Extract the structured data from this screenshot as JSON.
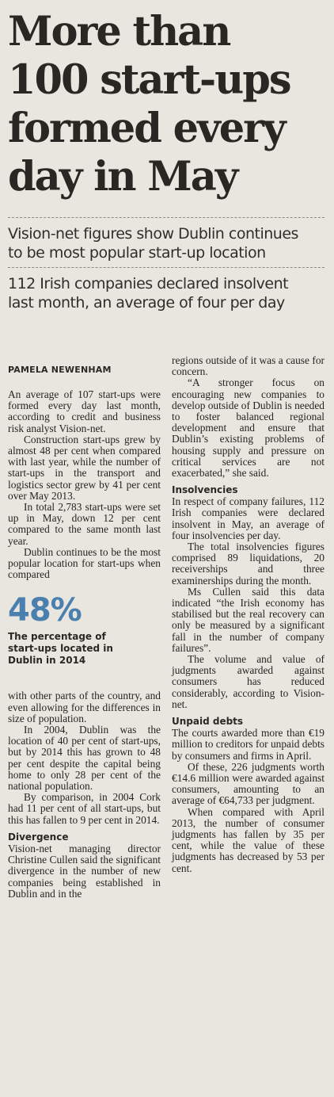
{
  "headline": {
    "lines": [
      "More than",
      "100 start-ups",
      "formed every",
      "day in May"
    ]
  },
  "decks": [
    {
      "lines": [
        "Vision-net figures show Dublin continues",
        "to be most popular start-up location"
      ]
    },
    {
      "lines": [
        "112 Irish companies declared insolvent",
        "last month, an average of four per day"
      ]
    }
  ],
  "byline": "PAMELA NEWENHAM",
  "left_column": {
    "paragraphs": [
      "An average of 107 start-ups were formed every day last month, according to credit and business risk analyst Vision-net.",
      "Construction start-ups grew by almost 48 per cent when compared with last year, while the number of start-ups in the transport and logistics sector grew by 41 per cent over May 2013.",
      "In total 2,783 start-ups were set up in May, down 12 per cent compared to the same month last year.",
      "Dublin continues to be the most popular location for start-ups when compared"
    ],
    "stat": {
      "number": "48%",
      "caption_lines": [
        "The percentage of",
        "start-ups located in",
        "Dublin in 2014"
      ]
    },
    "paragraphs_after": [
      "with other parts of the country, and even allowing for the differences in size of population.",
      "In 2004, Dublin was the location of 40 per cent of start-ups, but by 2014 this has grown to 48 per cent despite the capital being home to only 28 per cent of the national population.",
      "By comparison, in 2004 Cork had 11 per cent of all start-ups, but this has fallen to 9 per cent in 2014."
    ],
    "divergence": {
      "subhead": "Divergence",
      "paragraph": "Vision-net managing director Christine Cullen said the significant divergence in the number of new companies being established in Dublin and in the"
    }
  },
  "right_column": {
    "paragraphs": [
      "regions outside of it was a cause for concern.",
      "“A stronger focus on encouraging new companies to develop outside of Dublin is needed to foster balanced regional development and ensure that Dublin’s existing problems of housing supply and pressure on critical services are not exacerbated,” she said."
    ],
    "insolvencies": {
      "subhead": "Insolvencies",
      "paragraphs": [
        "In respect of company failures, 112 Irish companies were declared insolvent in May, an average of four insolvencies per day.",
        "The total insolvencies figures comprised 89 liquidations, 20 receiverships and three examinerships during the month.",
        "Ms Cullen said this data indicated “the Irish economy has stabilised but the real recovery can only be measured by a significant fall in the number of company failures”.",
        "The volume and value of judgments awarded against consumers has reduced considerably, according to Vision-net."
      ]
    },
    "unpaid_debts": {
      "subhead": "Unpaid debts",
      "paragraphs": [
        "The courts awarded more than €19 million to creditors for unpaid debts by consumers and firms in April.",
        "Of these, 226 judgments worth €14.6 million were awarded against consumers, amounting to an average of €64,733 per judgment.",
        "When compared with April 2013, the number of consumer judgments has fallen by 35 per cent, while the value of these judgments has decreased by 53 per cent."
      ]
    }
  },
  "colors": {
    "paper": "#e9e6df",
    "ink": "#1f1e1c",
    "stat_blue": "#4b7fae"
  }
}
